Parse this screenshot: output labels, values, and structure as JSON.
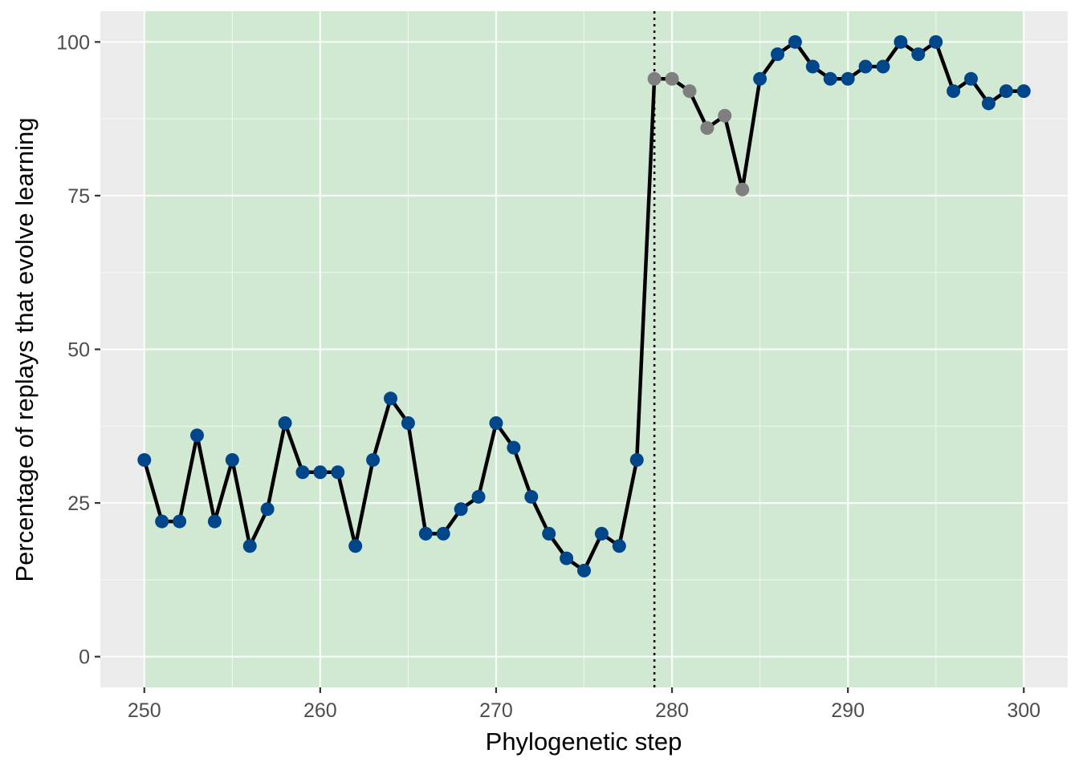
{
  "chart_data": {
    "type": "line",
    "title": "",
    "xlabel": "Phylogenetic step",
    "ylabel": "Percentage of replays that evolve learning",
    "xlim": [
      247.5,
      302.5
    ],
    "ylim": [
      -5,
      105
    ],
    "x_ticks": [
      250,
      260,
      270,
      280,
      290,
      300
    ],
    "y_ticks": [
      0,
      25,
      50,
      75,
      100
    ],
    "grid": true,
    "shaded_region": {
      "x_from": 250,
      "x_to": 300,
      "color": "#d1e9d2"
    },
    "vline": {
      "x": 279,
      "style": "dotted",
      "color": "#000000"
    },
    "line_color": "#000000",
    "point_colors": {
      "default": "#00468b",
      "highlight": "#7f7f7f"
    },
    "points": [
      {
        "x": 250,
        "y": 32,
        "highlight": false
      },
      {
        "x": 251,
        "y": 22,
        "highlight": false
      },
      {
        "x": 252,
        "y": 22,
        "highlight": false
      },
      {
        "x": 253,
        "y": 36,
        "highlight": false
      },
      {
        "x": 254,
        "y": 22,
        "highlight": false
      },
      {
        "x": 255,
        "y": 32,
        "highlight": false
      },
      {
        "x": 256,
        "y": 18,
        "highlight": false
      },
      {
        "x": 257,
        "y": 24,
        "highlight": false
      },
      {
        "x": 258,
        "y": 38,
        "highlight": false
      },
      {
        "x": 259,
        "y": 30,
        "highlight": false
      },
      {
        "x": 260,
        "y": 30,
        "highlight": false
      },
      {
        "x": 261,
        "y": 30,
        "highlight": false
      },
      {
        "x": 262,
        "y": 18,
        "highlight": false
      },
      {
        "x": 263,
        "y": 32,
        "highlight": false
      },
      {
        "x": 264,
        "y": 42,
        "highlight": false
      },
      {
        "x": 265,
        "y": 38,
        "highlight": false
      },
      {
        "x": 266,
        "y": 20,
        "highlight": false
      },
      {
        "x": 267,
        "y": 20,
        "highlight": false
      },
      {
        "x": 268,
        "y": 24,
        "highlight": false
      },
      {
        "x": 269,
        "y": 26,
        "highlight": false
      },
      {
        "x": 270,
        "y": 38,
        "highlight": false
      },
      {
        "x": 271,
        "y": 34,
        "highlight": false
      },
      {
        "x": 272,
        "y": 26,
        "highlight": false
      },
      {
        "x": 273,
        "y": 20,
        "highlight": false
      },
      {
        "x": 274,
        "y": 16,
        "highlight": false
      },
      {
        "x": 275,
        "y": 14,
        "highlight": false
      },
      {
        "x": 276,
        "y": 20,
        "highlight": false
      },
      {
        "x": 277,
        "y": 18,
        "highlight": false
      },
      {
        "x": 278,
        "y": 32,
        "highlight": false
      },
      {
        "x": 279,
        "y": 94,
        "highlight": true
      },
      {
        "x": 280,
        "y": 94,
        "highlight": true
      },
      {
        "x": 281,
        "y": 92,
        "highlight": true
      },
      {
        "x": 282,
        "y": 86,
        "highlight": true
      },
      {
        "x": 283,
        "y": 88,
        "highlight": true
      },
      {
        "x": 284,
        "y": 76,
        "highlight": true
      },
      {
        "x": 285,
        "y": 94,
        "highlight": false
      },
      {
        "x": 286,
        "y": 98,
        "highlight": false
      },
      {
        "x": 287,
        "y": 100,
        "highlight": false
      },
      {
        "x": 288,
        "y": 96,
        "highlight": false
      },
      {
        "x": 289,
        "y": 94,
        "highlight": false
      },
      {
        "x": 290,
        "y": 94,
        "highlight": false
      },
      {
        "x": 291,
        "y": 96,
        "highlight": false
      },
      {
        "x": 292,
        "y": 96,
        "highlight": false
      },
      {
        "x": 293,
        "y": 100,
        "highlight": false
      },
      {
        "x": 294,
        "y": 98,
        "highlight": false
      },
      {
        "x": 295,
        "y": 100,
        "highlight": false
      },
      {
        "x": 296,
        "y": 92,
        "highlight": false
      },
      {
        "x": 297,
        "y": 94,
        "highlight": false
      },
      {
        "x": 298,
        "y": 90,
        "highlight": false
      },
      {
        "x": 299,
        "y": 92,
        "highlight": false
      },
      {
        "x": 300,
        "y": 92,
        "highlight": false
      }
    ]
  }
}
